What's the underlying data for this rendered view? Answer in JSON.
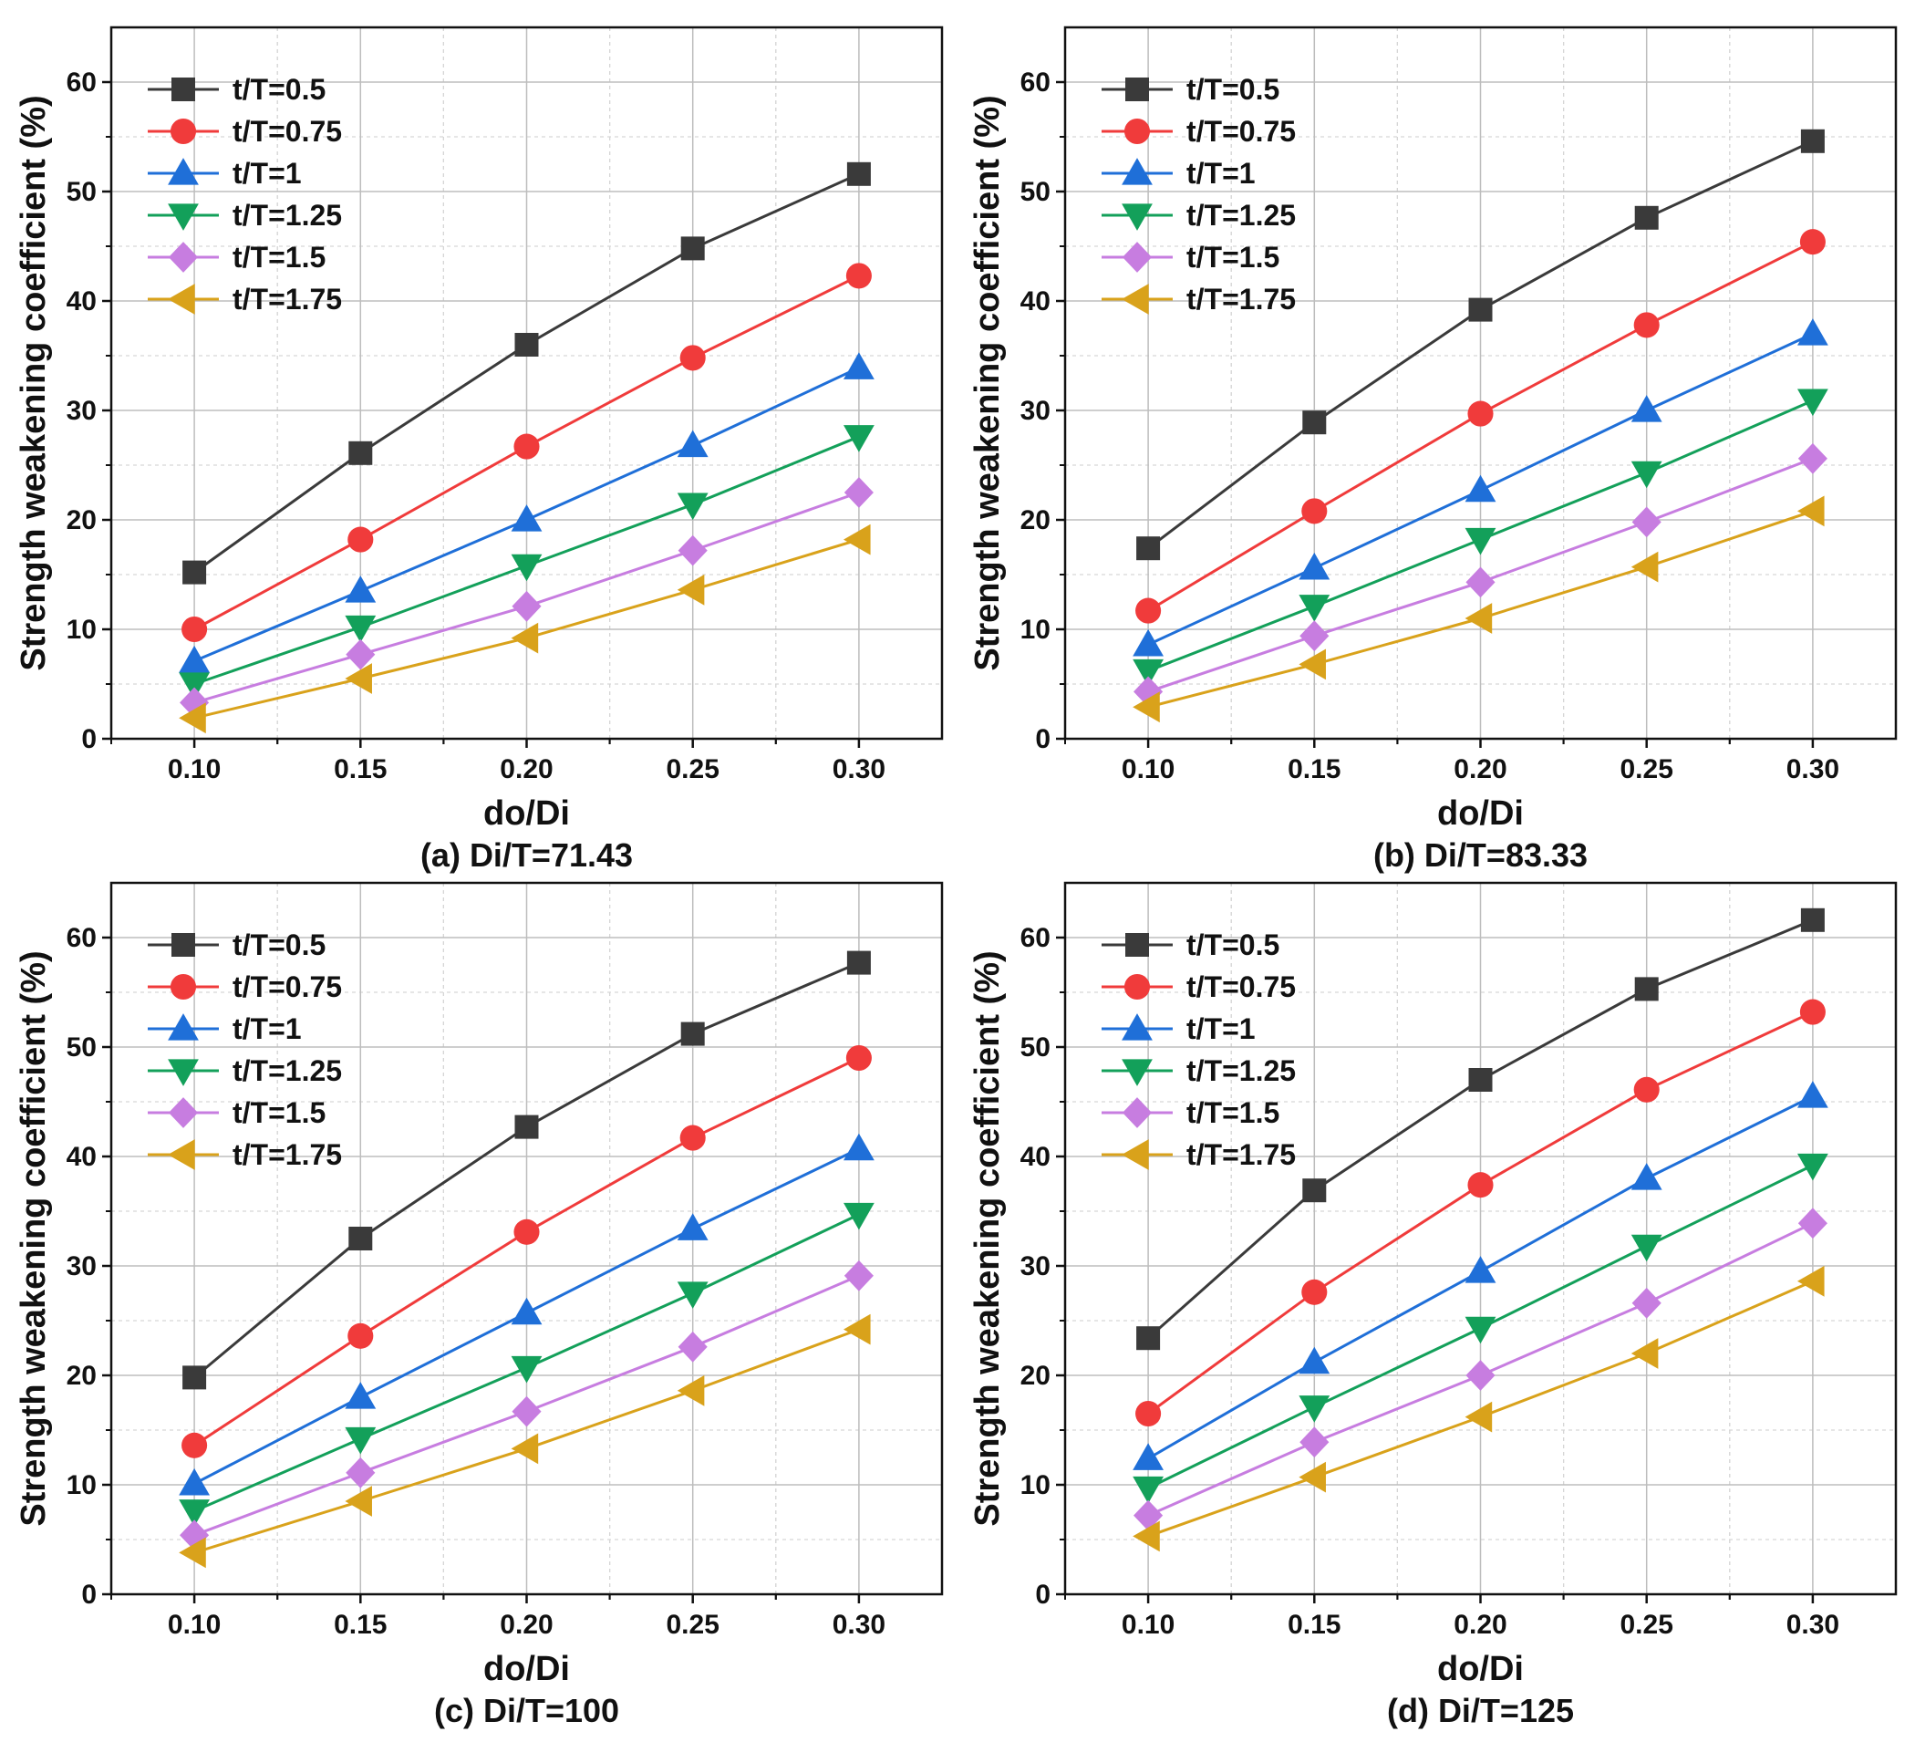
{
  "figure": {
    "legend_position": "top-left",
    "series_styles": [
      {
        "name": "t/T=0.5",
        "color": "#3a3a3a",
        "marker": "square"
      },
      {
        "name": "t/T=0.75",
        "color": "#f03b3b",
        "marker": "circle"
      },
      {
        "name": "t/T=1",
        "color": "#1f6fd8",
        "marker": "triangle-up"
      },
      {
        "name": "t/T=1.25",
        "color": "#13a05a",
        "marker": "triangle-down"
      },
      {
        "name": "t/T=1.5",
        "color": "#c77de0",
        "marker": "diamond"
      },
      {
        "name": "t/T=1.75",
        "color": "#d9a21b",
        "marker": "triangle-left"
      }
    ]
  },
  "chart_data": [
    {
      "type": "line",
      "title": "(a) Di/T=71.43",
      "xlabel": "do/Di",
      "ylabel": "Strength weakening coefficient (%)",
      "x": [
        0.1,
        0.15,
        0.2,
        0.25,
        0.3
      ],
      "x_tick_labels": [
        "0.10",
        "0.15",
        "0.20",
        "0.25",
        "0.30"
      ],
      "xlim": [
        0.075,
        0.325
      ],
      "ylim": [
        0,
        65
      ],
      "y_ticks": [
        0,
        10,
        20,
        30,
        40,
        50,
        60
      ],
      "grid": true,
      "series": [
        {
          "name": "t/T=0.5",
          "values": [
            15.2,
            26.1,
            36.0,
            44.8,
            51.6
          ]
        },
        {
          "name": "t/T=0.75",
          "values": [
            10.0,
            18.2,
            26.7,
            34.8,
            42.3
          ]
        },
        {
          "name": "t/T=1",
          "values": [
            7.1,
            13.5,
            20.0,
            26.8,
            33.9
          ]
        },
        {
          "name": "t/T=1.25",
          "values": [
            5.0,
            10.2,
            15.8,
            21.4,
            27.6
          ]
        },
        {
          "name": "t/T=1.5",
          "values": [
            3.3,
            7.7,
            12.1,
            17.2,
            22.5
          ]
        },
        {
          "name": "t/T=1.75",
          "values": [
            1.9,
            5.5,
            9.2,
            13.6,
            18.2
          ]
        }
      ]
    },
    {
      "type": "line",
      "title": "(b) Di/T=83.33",
      "xlabel": "do/Di",
      "ylabel": "Strength weakening coefficient (%)",
      "x": [
        0.1,
        0.15,
        0.2,
        0.25,
        0.3
      ],
      "x_tick_labels": [
        "0.10",
        "0.15",
        "0.20",
        "0.25",
        "0.30"
      ],
      "xlim": [
        0.075,
        0.325
      ],
      "ylim": [
        0,
        65
      ],
      "y_ticks": [
        0,
        10,
        20,
        30,
        40,
        50,
        60
      ],
      "grid": true,
      "series": [
        {
          "name": "t/T=0.5",
          "values": [
            17.4,
            28.9,
            39.2,
            47.6,
            54.6
          ]
        },
        {
          "name": "t/T=0.75",
          "values": [
            11.7,
            20.8,
            29.7,
            37.8,
            45.4
          ]
        },
        {
          "name": "t/T=1",
          "values": [
            8.6,
            15.6,
            22.7,
            30.0,
            37.0
          ]
        },
        {
          "name": "t/T=1.25",
          "values": [
            6.2,
            12.1,
            18.2,
            24.3,
            30.9
          ]
        },
        {
          "name": "t/T=1.5",
          "values": [
            4.3,
            9.4,
            14.3,
            19.8,
            25.6
          ]
        },
        {
          "name": "t/T=1.75",
          "values": [
            2.9,
            6.8,
            11.0,
            15.7,
            20.8
          ]
        }
      ]
    },
    {
      "type": "line",
      "title": "(c) Di/T=100",
      "xlabel": "do/Di",
      "ylabel": "Strength weakening coefficient (%)",
      "x": [
        0.1,
        0.15,
        0.2,
        0.25,
        0.3
      ],
      "x_tick_labels": [
        "0.10",
        "0.15",
        "0.20",
        "0.25",
        "0.30"
      ],
      "xlim": [
        0.075,
        0.325
      ],
      "ylim": [
        0,
        65
      ],
      "y_ticks": [
        0,
        10,
        20,
        30,
        40,
        50,
        60
      ],
      "grid": true,
      "series": [
        {
          "name": "t/T=0.5",
          "values": [
            19.8,
            32.5,
            42.7,
            51.2,
            57.7
          ]
        },
        {
          "name": "t/T=0.75",
          "values": [
            13.6,
            23.6,
            33.1,
            41.7,
            49.0
          ]
        },
        {
          "name": "t/T=1",
          "values": [
            10.1,
            18.0,
            25.7,
            33.4,
            40.7
          ]
        },
        {
          "name": "t/T=1.25",
          "values": [
            7.6,
            14.2,
            20.7,
            27.5,
            34.7
          ]
        },
        {
          "name": "t/T=1.5",
          "values": [
            5.4,
            11.1,
            16.7,
            22.6,
            29.1
          ]
        },
        {
          "name": "t/T=1.75",
          "values": [
            3.8,
            8.5,
            13.3,
            18.6,
            24.2
          ]
        }
      ]
    },
    {
      "type": "line",
      "title": "(d) Di/T=125",
      "xlabel": "do/Di",
      "ylabel": "Strength weakening coefficient (%)",
      "x": [
        0.1,
        0.15,
        0.2,
        0.25,
        0.3
      ],
      "x_tick_labels": [
        "0.10",
        "0.15",
        "0.20",
        "0.25",
        "0.30"
      ],
      "xlim": [
        0.075,
        0.325
      ],
      "ylim": [
        0,
        65
      ],
      "y_ticks": [
        0,
        10,
        20,
        30,
        40,
        50,
        60
      ],
      "grid": true,
      "series": [
        {
          "name": "t/T=0.5",
          "values": [
            23.4,
            36.9,
            47.0,
            55.3,
            61.6
          ]
        },
        {
          "name": "t/T=0.75",
          "values": [
            16.5,
            27.6,
            37.4,
            46.1,
            53.2
          ]
        },
        {
          "name": "t/T=1",
          "values": [
            12.4,
            21.2,
            29.5,
            38.0,
            45.5
          ]
        },
        {
          "name": "t/T=1.25",
          "values": [
            9.7,
            17.1,
            24.3,
            31.8,
            39.2
          ]
        },
        {
          "name": "t/T=1.5",
          "values": [
            7.2,
            13.9,
            20.0,
            26.6,
            33.9
          ]
        },
        {
          "name": "t/T=1.75",
          "values": [
            5.3,
            10.7,
            16.2,
            22.0,
            28.6
          ]
        }
      ]
    }
  ]
}
